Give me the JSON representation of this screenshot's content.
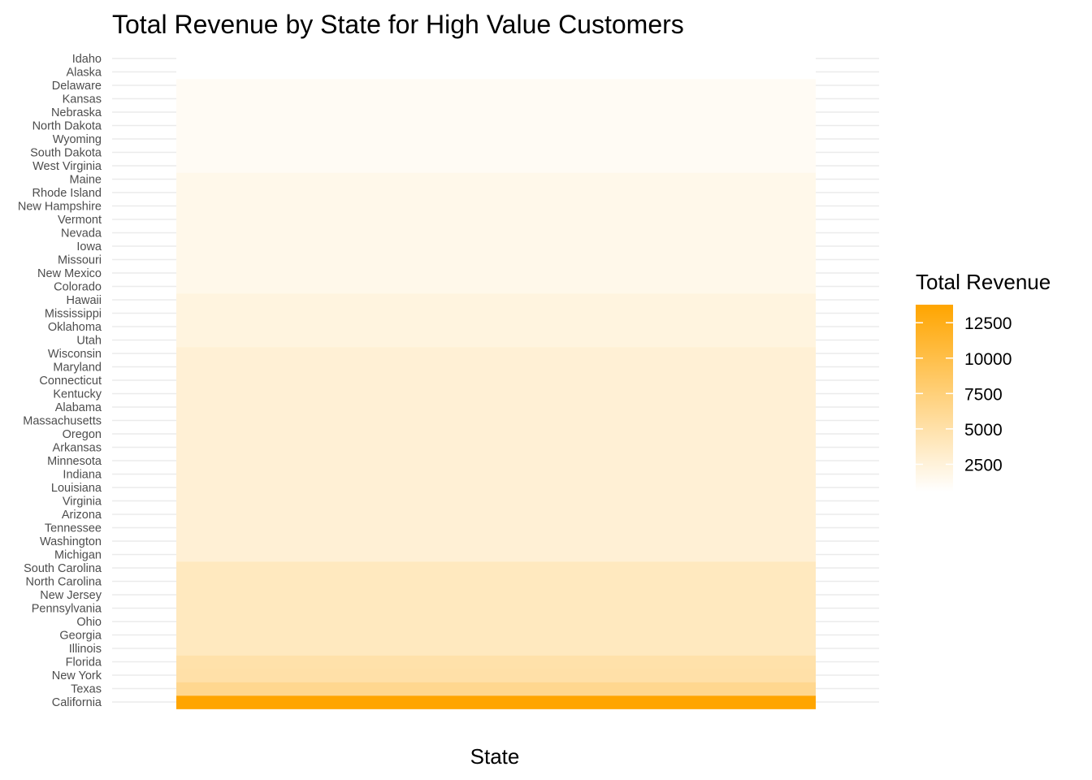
{
  "chart_data": {
    "type": "heatmap",
    "title": "Total Revenue by State for High Value Customers",
    "xlabel": "State",
    "ylabel": "",
    "x_categories": [
      ""
    ],
    "states": [
      "California",
      "Texas",
      "New York",
      "Florida",
      "Illinois",
      "Georgia",
      "Ohio",
      "Pennsylvania",
      "New Jersey",
      "North Carolina",
      "South Carolina",
      "Michigan",
      "Washington",
      "Tennessee",
      "Arizona",
      "Virginia",
      "Louisiana",
      "Indiana",
      "Minnesota",
      "Arkansas",
      "Oregon",
      "Massachusetts",
      "Alabama",
      "Kentucky",
      "Connecticut",
      "Maryland",
      "Wisconsin",
      "Utah",
      "Oklahoma",
      "Mississippi",
      "Hawaii",
      "Colorado",
      "New Mexico",
      "Missouri",
      "Iowa",
      "Nevada",
      "Vermont",
      "New Hampshire",
      "Rhode Island",
      "Maine",
      "West Virginia",
      "South Dakota",
      "Wyoming",
      "North Dakota",
      "Nebraska",
      "Kansas",
      "Delaware",
      "Alaska",
      "Idaho"
    ],
    "values": [
      13200,
      5800,
      4500,
      4400,
      3300,
      3300,
      3300,
      3300,
      3300,
      3300,
      3300,
      2200,
      2200,
      2200,
      2200,
      2200,
      2200,
      2200,
      2200,
      2200,
      2200,
      2200,
      2200,
      2200,
      2200,
      2200,
      2200,
      1650,
      1650,
      1650,
      1650,
      1100,
      1100,
      1100,
      1100,
      1100,
      1100,
      1100,
      1100,
      1100,
      550,
      550,
      550,
      550,
      550,
      550,
      550,
      0,
      0
    ],
    "legend": {
      "title": "Total Revenue",
      "ticks": [
        2500,
        5000,
        7500,
        10000,
        12500
      ],
      "tick_labels": [
        "2500",
        "5000",
        "7500",
        "10000",
        "12500"
      ],
      "low_color": "#ffffff",
      "high_color": "#ffa500",
      "placement": "right"
    },
    "grid": true
  }
}
